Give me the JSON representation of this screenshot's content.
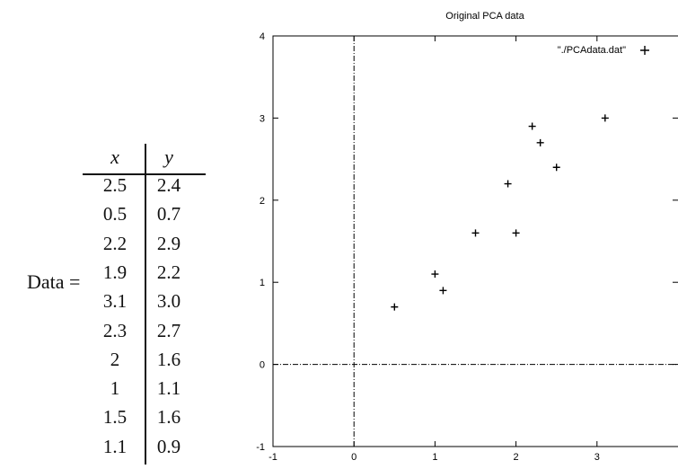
{
  "table": {
    "prefix": "Data =",
    "headers": [
      "x",
      "y"
    ],
    "rows": [
      [
        "2.5",
        "2.4"
      ],
      [
        "0.5",
        "0.7"
      ],
      [
        "2.2",
        "2.9"
      ],
      [
        "1.9",
        "2.2"
      ],
      [
        "3.1",
        "3.0"
      ],
      [
        "2.3",
        "2.7"
      ],
      [
        "2",
        "1.6"
      ],
      [
        "1",
        "1.1"
      ],
      [
        "1.5",
        "1.6"
      ],
      [
        "1.1",
        "0.9"
      ]
    ]
  },
  "chart_data": {
    "type": "scatter",
    "title": "Original PCA data",
    "xlabel": "",
    "ylabel": "",
    "xlim": [
      -1,
      4
    ],
    "ylim": [
      -1,
      4
    ],
    "x_ticks": [
      "-1",
      "0",
      "1",
      "2",
      "3"
    ],
    "y_ticks": [
      "-1",
      "0",
      "1",
      "2",
      "3",
      "4"
    ],
    "grid": false,
    "legend": "top-right",
    "series": [
      {
        "name": "\"./PCAdata.dat\"",
        "marker": "+",
        "points": [
          [
            2.5,
            2.4
          ],
          [
            0.5,
            0.7
          ],
          [
            2.2,
            2.9
          ],
          [
            1.9,
            2.2
          ],
          [
            3.1,
            3.0
          ],
          [
            2.3,
            2.7
          ],
          [
            2,
            1.6
          ],
          [
            1,
            1.1
          ],
          [
            1.5,
            1.6
          ],
          [
            1.1,
            0.9
          ]
        ]
      }
    ]
  }
}
